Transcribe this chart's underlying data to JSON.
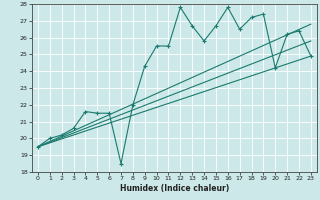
{
  "xlabel": "Humidex (Indice chaleur)",
  "background_color": "#cce8e8",
  "grid_color": "#ffffff",
  "line_color": "#1a7a6e",
  "xlim": [
    -0.5,
    23.5
  ],
  "ylim": [
    18,
    28
  ],
  "xticks": [
    0,
    1,
    2,
    3,
    4,
    5,
    6,
    7,
    8,
    9,
    10,
    11,
    12,
    13,
    14,
    15,
    16,
    17,
    18,
    19,
    20,
    21,
    22,
    23
  ],
  "yticks": [
    18,
    19,
    20,
    21,
    22,
    23,
    24,
    25,
    26,
    27,
    28
  ],
  "scatter_x": [
    0,
    1,
    2,
    3,
    4,
    5,
    6,
    7,
    8,
    9,
    10,
    11,
    12,
    13,
    14,
    15,
    16,
    17,
    18,
    19,
    20,
    21,
    22,
    23
  ],
  "scatter_y": [
    19.5,
    20.0,
    20.2,
    20.6,
    21.6,
    21.5,
    21.5,
    18.5,
    22.0,
    24.3,
    25.5,
    25.5,
    27.8,
    26.7,
    25.8,
    26.7,
    27.8,
    26.5,
    27.2,
    27.4,
    24.2,
    26.2,
    26.4,
    24.9
  ],
  "trend1_x": [
    0,
    23
  ],
  "trend1_y": [
    19.5,
    24.9
  ],
  "trend2_x": [
    0,
    23
  ],
  "trend2_y": [
    19.5,
    26.8
  ],
  "trend3_x": [
    0,
    23
  ],
  "trend3_y": [
    19.5,
    25.8
  ]
}
